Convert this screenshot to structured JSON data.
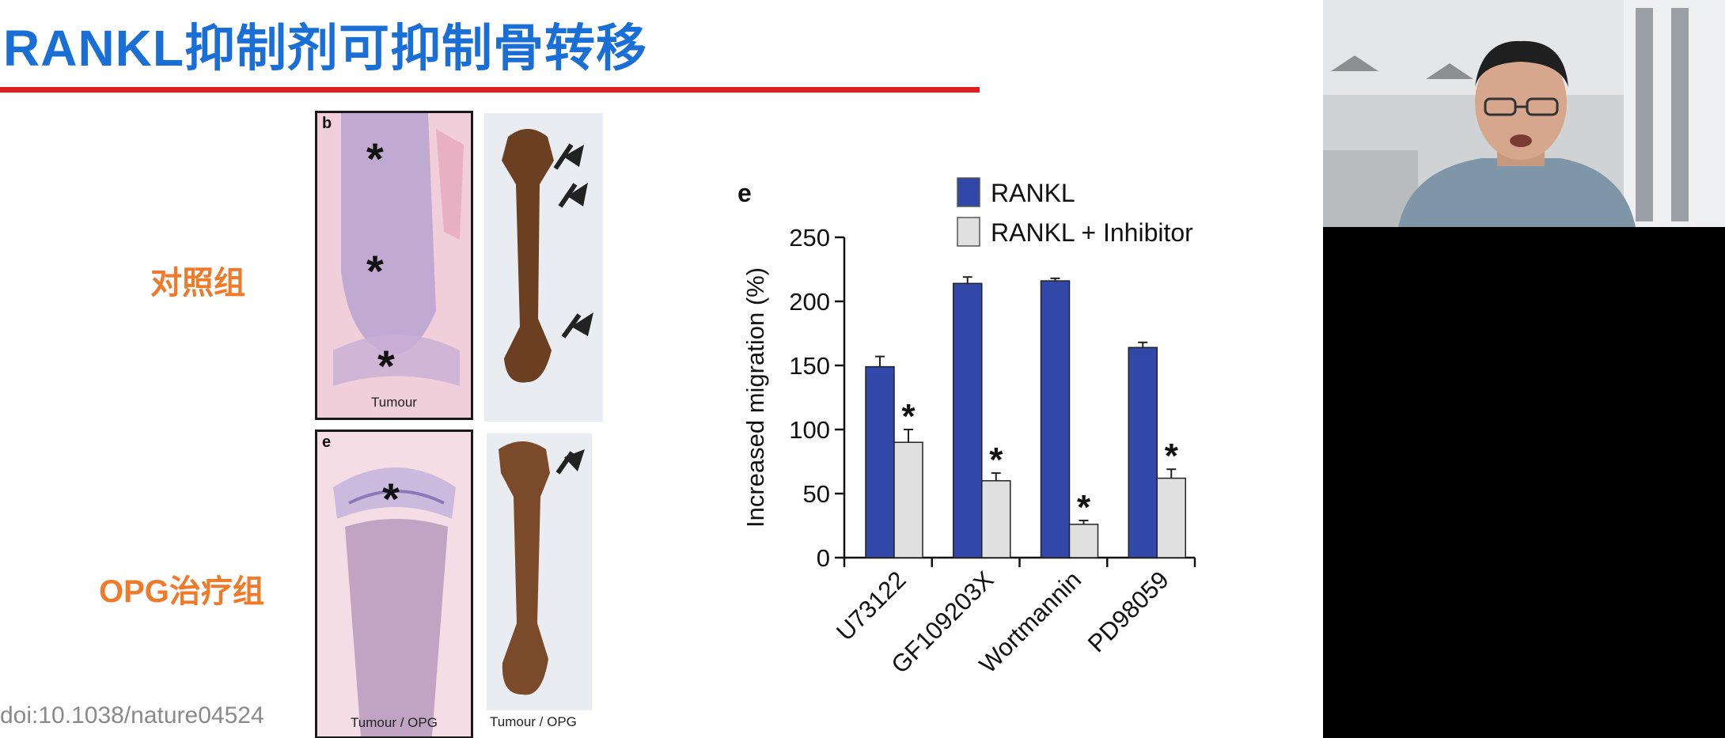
{
  "slide": {
    "title": "RANKL抑制剂可抑制骨转移",
    "control_group_label": "对照组",
    "opg_group_label": "OPG治疗组",
    "doi": "doi:10.1038/nature04524",
    "panel_b": {
      "letter": "b",
      "caption": "Tumour",
      "asterisk": "*"
    },
    "panel_e_left": {
      "letter": "e",
      "caption": "Tumour / OPG",
      "asterisk": "*"
    },
    "bone_caption": "Tumour / OPG"
  },
  "colors": {
    "title": "#1a6fd6",
    "rule": "#e02020",
    "group_label": "#ef7a2a",
    "rankl_bar": "#3148a8",
    "inhibitor_bar": "#e0e0e0"
  },
  "chart_data": {
    "type": "bar",
    "panel_letter": "e",
    "categories": [
      "U73122",
      "GF109203X",
      "Wortmannin",
      "PD98059"
    ],
    "series": [
      {
        "name": "RANKL",
        "values": [
          149,
          214,
          216,
          164
        ],
        "errors": [
          8,
          5,
          2,
          4
        ]
      },
      {
        "name": "RANKL + Inhibitor",
        "values": [
          90,
          60,
          26,
          62
        ],
        "errors": [
          10,
          6,
          3,
          7
        ]
      }
    ],
    "significance": [
      "*",
      "*",
      "*",
      "*"
    ],
    "ylabel": "Increased migration (%)",
    "xlabel": "",
    "ylim": [
      0,
      250
    ],
    "yticks": [
      0,
      50,
      100,
      150,
      200,
      250
    ],
    "legend_position": "top",
    "grid": false
  }
}
